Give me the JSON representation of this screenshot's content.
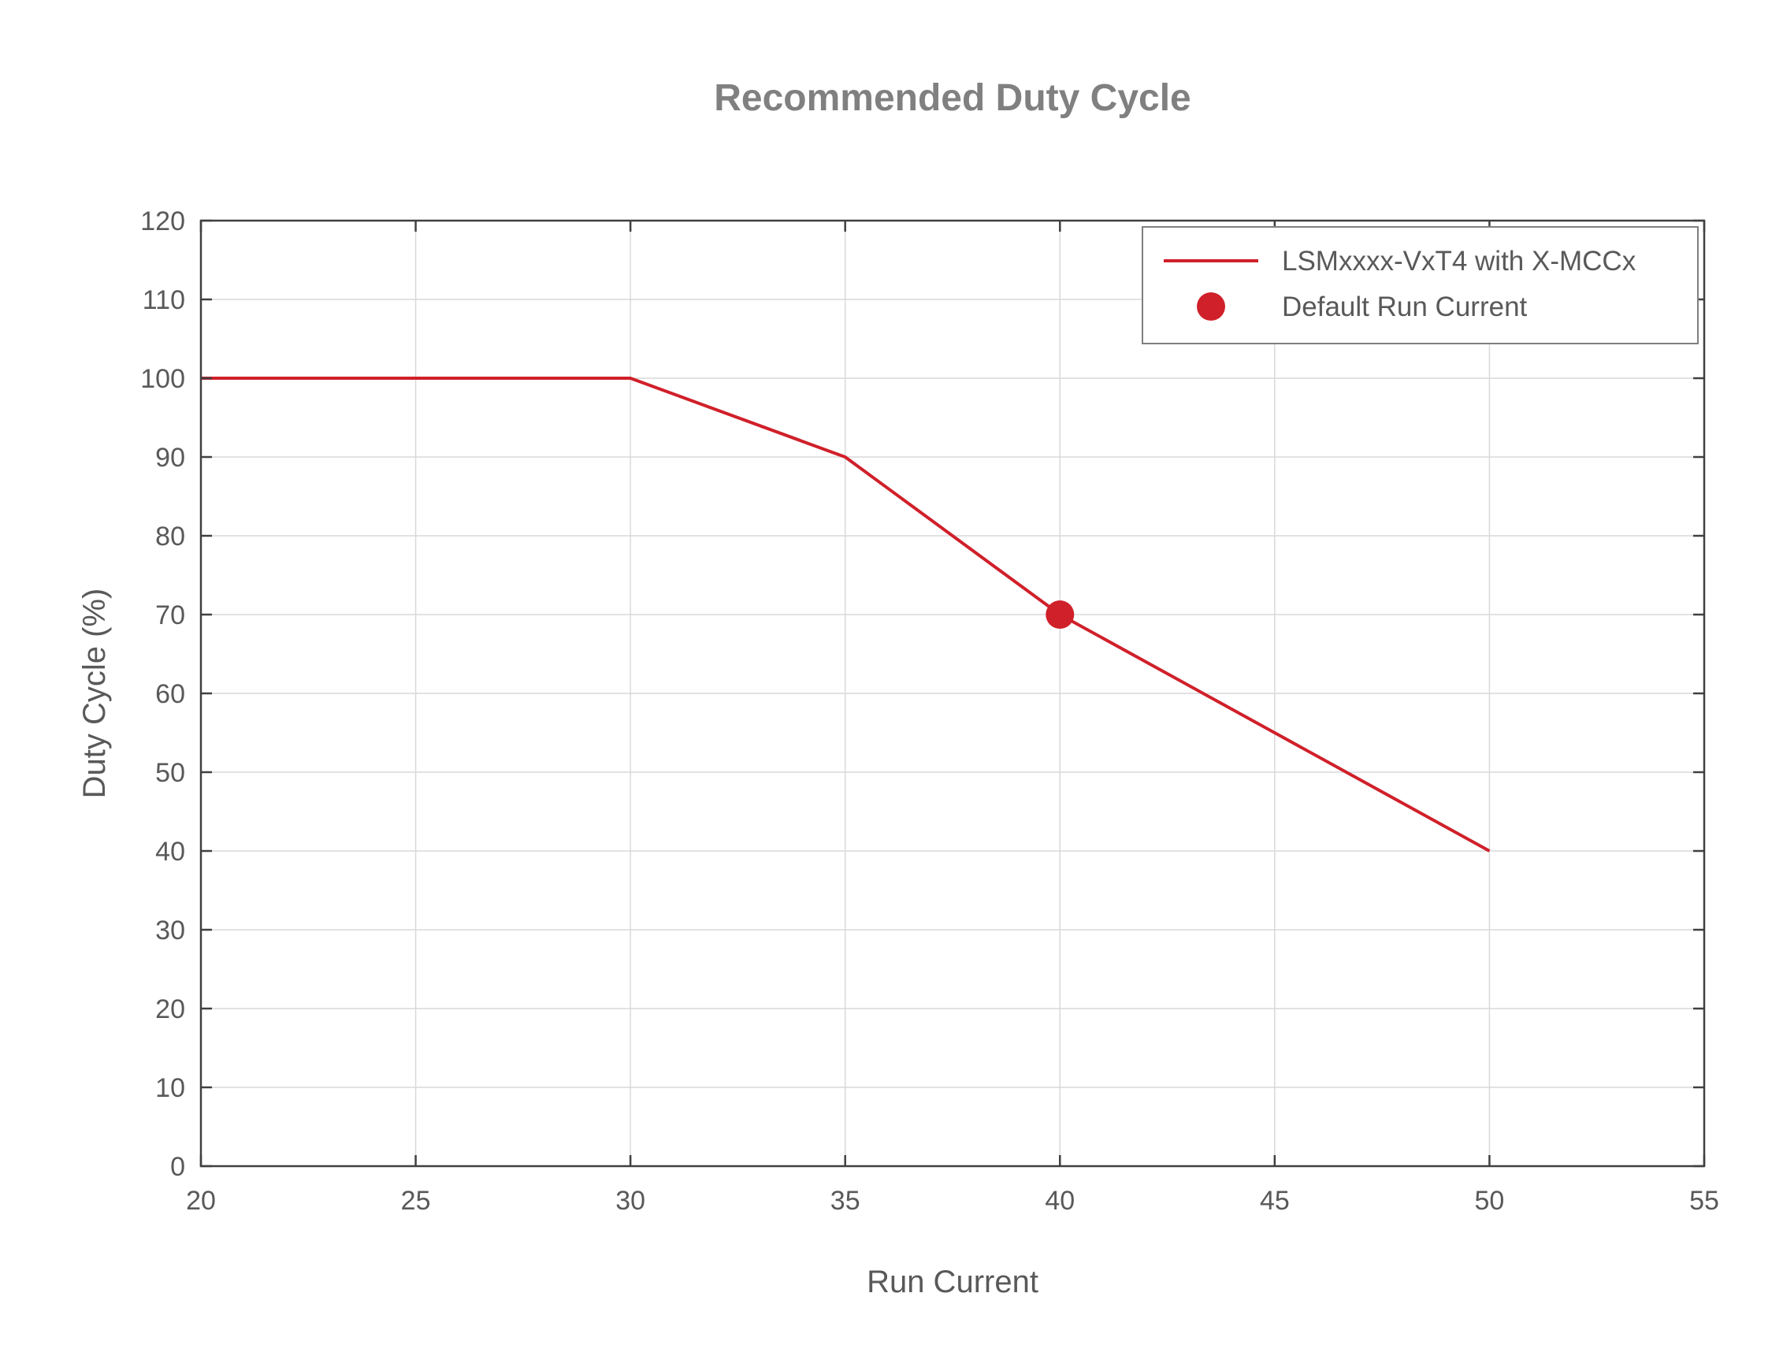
{
  "chart_data": {
    "type": "line",
    "title": "Recommended Duty Cycle",
    "xlabel": "Run Current",
    "ylabel": "Duty Cycle (%)",
    "xlim": [
      20,
      55
    ],
    "ylim": [
      0,
      120
    ],
    "xticks": [
      20,
      25,
      30,
      35,
      40,
      45,
      50,
      55
    ],
    "yticks": [
      0,
      10,
      20,
      30,
      40,
      50,
      60,
      70,
      80,
      90,
      100,
      110,
      120
    ],
    "grid": true,
    "legend_position": "top-right",
    "series": [
      {
        "name": "LSMxxxx-VxT4 with X-MCCx",
        "kind": "line",
        "color": "#d0202a",
        "x": [
          20,
          30,
          35,
          40,
          45,
          50
        ],
        "y": [
          100,
          100,
          90,
          70,
          55,
          40
        ]
      },
      {
        "name": "Default Run Current",
        "kind": "marker",
        "color": "#d0202a",
        "x": [
          40
        ],
        "y": [
          70
        ]
      }
    ]
  }
}
